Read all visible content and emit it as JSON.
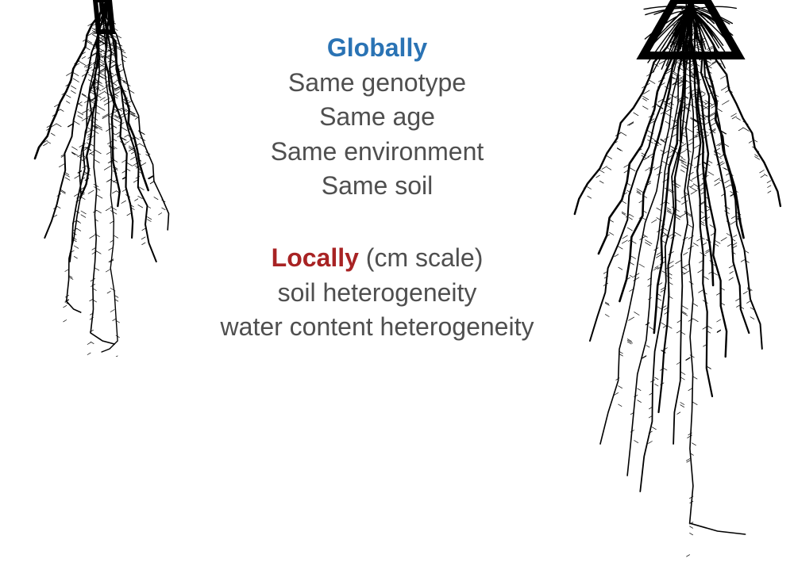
{
  "colors": {
    "global_heading": "#2A73B4",
    "local_heading": "#A82324",
    "body_text": "#4F4F4F",
    "roots": "#000000",
    "background": "#FFFFFF"
  },
  "global": {
    "heading": "Globally",
    "items": [
      "Same genotype",
      "Same age",
      "Same environment",
      "Same soil"
    ]
  },
  "local": {
    "heading": "Locally",
    "qualifier": " (cm scale)",
    "items": [
      "soil heterogeneity",
      "water content heterogeneity"
    ]
  }
}
